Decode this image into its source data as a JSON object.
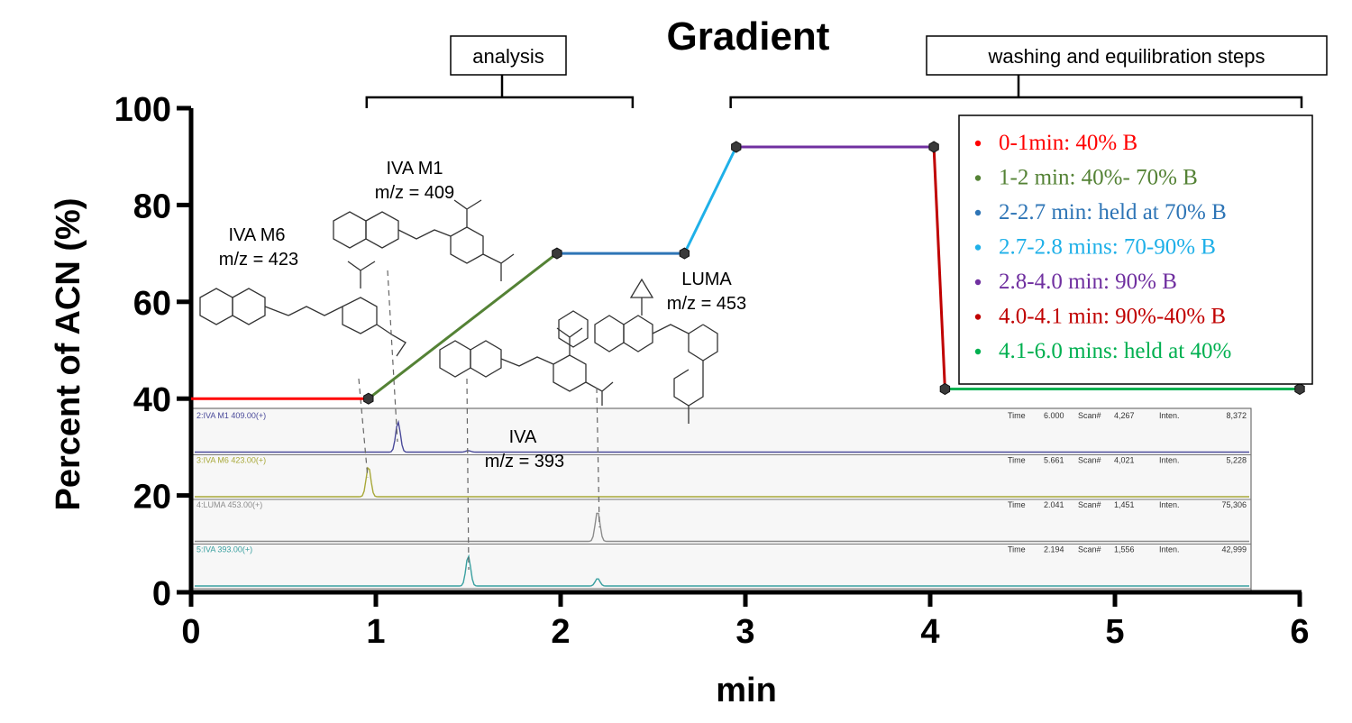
{
  "chart_data": {
    "type": "line",
    "title": "Gradient",
    "xlabel": "min",
    "ylabel": "Percent  of ACN (%)",
    "xlim": [
      0,
      6
    ],
    "ylim": [
      0,
      100
    ],
    "xticks": [
      "0",
      "1",
      "2",
      "3",
      "4",
      "5",
      "6"
    ],
    "yticks": [
      "0",
      "20",
      "40",
      "60",
      "80",
      "100"
    ],
    "grid": false,
    "legend_position": "top-right",
    "series": [
      {
        "name": "0-1min: 40% B",
        "color": "#ff0000",
        "points": [
          [
            0,
            40
          ],
          [
            0.96,
            40
          ]
        ]
      },
      {
        "name": "1-2 min: 40%- 70% B",
        "color": "#548235",
        "points": [
          [
            0.96,
            40
          ],
          [
            1.98,
            70
          ]
        ]
      },
      {
        "name": "2-2.7 min: held at 70% B",
        "color": "#2e75b6",
        "points": [
          [
            1.98,
            70
          ],
          [
            2.67,
            70
          ]
        ]
      },
      {
        "name": "2.7-2.8 mins: 70-90% B",
        "color": "#1fb0e8",
        "points": [
          [
            2.67,
            70
          ],
          [
            2.95,
            92
          ]
        ]
      },
      {
        "name": "2.8-4.0 min: 90% B",
        "color": "#7030a0",
        "points": [
          [
            2.95,
            92
          ],
          [
            4.02,
            92
          ]
        ]
      },
      {
        "name": "4.0-4.1 min: 90%-40%  B",
        "color": "#c00000",
        "points": [
          [
            4.02,
            92
          ],
          [
            4.08,
            42
          ]
        ]
      },
      {
        "name": "4.1-6.0 mins: held at 40%",
        "color": "#00b050",
        "points": [
          [
            4.08,
            42
          ],
          [
            6.0,
            42
          ]
        ]
      }
    ],
    "markers": [
      [
        0.96,
        40
      ],
      [
        1.98,
        70
      ],
      [
        2.67,
        70
      ],
      [
        2.95,
        92
      ],
      [
        4.02,
        92
      ],
      [
        4.08,
        42
      ],
      [
        6.0,
        42
      ]
    ],
    "brackets": [
      {
        "label": "analysis",
        "x_start": 0.96,
        "x_end": 2.38
      },
      {
        "label": "washing and equilibration steps",
        "x_start": 2.93,
        "x_end": 6.0
      }
    ],
    "compound_labels": [
      {
        "name": "IVA M6",
        "mz": "m/z = 423"
      },
      {
        "name": "IVA M1",
        "mz": "m/z = 409"
      },
      {
        "name": "LUMA",
        "mz": "m/z = 453"
      },
      {
        "name": "IVA",
        "mz": "m/z = 393"
      }
    ],
    "chromatograms": [
      {
        "label": "2:IVA M1 409.00(+)",
        "color": "#4a4a9a",
        "peaks": [
          [
            1.12,
            1.0
          ],
          [
            1.5,
            0.05
          ]
        ],
        "time": "6.000",
        "scan": "4,267",
        "inten": "8,372"
      },
      {
        "label": "3:IVA M6 423.00(+)",
        "color": "#a8a838",
        "peaks": [
          [
            0.96,
            1.0
          ]
        ],
        "time": "5.661",
        "scan": "4,021",
        "inten": "5,228"
      },
      {
        "label": "4:LUMA 453.00(+)",
        "color": "#8c8c8c",
        "peaks": [
          [
            2.2,
            1.0
          ]
        ],
        "time": "2.041",
        "scan": "1,451",
        "inten": "75,306"
      },
      {
        "label": "5:IVA 393.00(+)",
        "color": "#3aa0a0",
        "peaks": [
          [
            1.5,
            1.0
          ],
          [
            2.2,
            0.25
          ]
        ],
        "time": "2.194",
        "scan": "1,556",
        "inten": "42,999"
      }
    ],
    "chromatogram_keys": {
      "time": "Time",
      "scan": "Scan#",
      "inten": "Inten."
    }
  }
}
